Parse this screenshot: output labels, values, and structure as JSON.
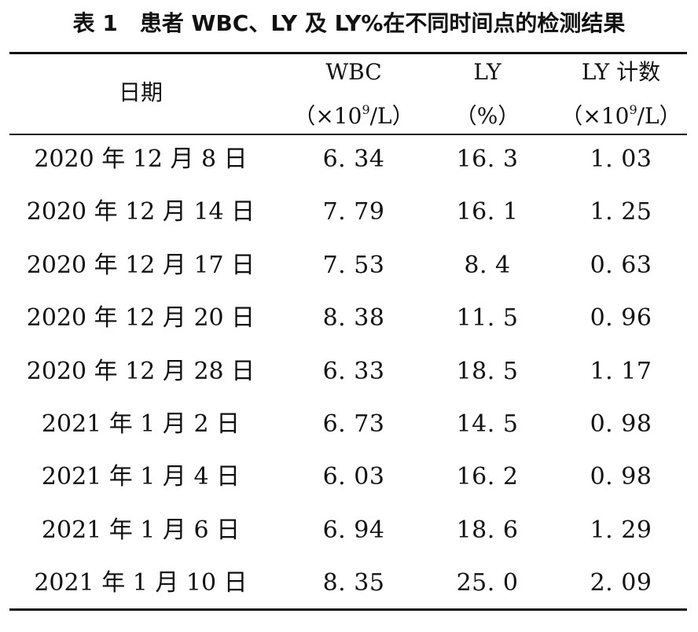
{
  "caption": {
    "label": "表 1",
    "title": "患者 WBC、LY 及 LY%在不同时间点的检测结果"
  },
  "table": {
    "headers": {
      "date": "日期",
      "wbc_name": "WBC",
      "wbc_unit_pre": "（×10",
      "wbc_unit_exp": "9",
      "wbc_unit_post": "/L）",
      "ly_name": "LY",
      "ly_unit": "（%）",
      "lyc_name": "LY 计数",
      "lyc_unit_pre": "（×10",
      "lyc_unit_exp": "9",
      "lyc_unit_post": "/L）"
    },
    "rows": [
      {
        "date": "2020 年 12 月 8 日",
        "wbc": "6. 34",
        "ly": "16. 3",
        "lyc": "1. 03"
      },
      {
        "date": "2020 年 12 月 14 日",
        "wbc": "7. 79",
        "ly": "16. 1",
        "lyc": "1. 25"
      },
      {
        "date": "2020 年 12 月 17 日",
        "wbc": "7. 53",
        "ly": "8. 4",
        "lyc": "0. 63"
      },
      {
        "date": "2020 年 12 月 20 日",
        "wbc": "8. 38",
        "ly": "11. 5",
        "lyc": "0. 96"
      },
      {
        "date": "2020 年 12 月 28 日",
        "wbc": "6. 33",
        "ly": "18. 5",
        "lyc": "1. 17"
      },
      {
        "date": "2021 年 1 月 2 日",
        "wbc": "6. 73",
        "ly": "14. 5",
        "lyc": "0. 98"
      },
      {
        "date": "2021 年 1 月 4 日",
        "wbc": "6. 03",
        "ly": "16. 2",
        "lyc": "0. 98"
      },
      {
        "date": "2021 年 1 月 6 日",
        "wbc": "6. 94",
        "ly": "18. 6",
        "lyc": "1. 29"
      },
      {
        "date": "2021 年 1 月 10 日",
        "wbc": "8. 35",
        "ly": "25. 0",
        "lyc": "2. 09"
      }
    ]
  }
}
